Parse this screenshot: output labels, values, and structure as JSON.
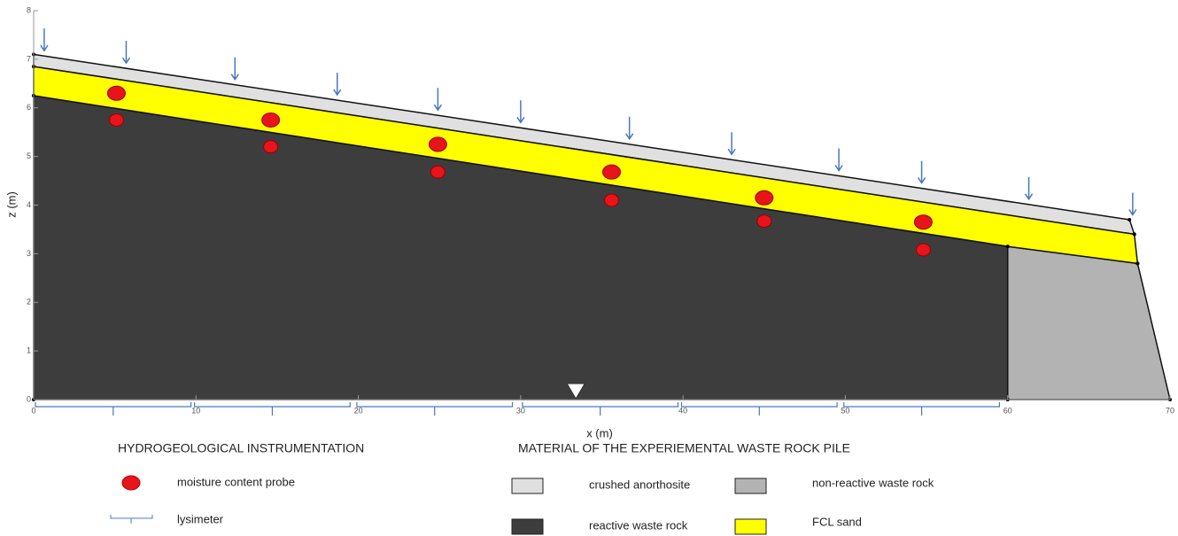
{
  "figure": {
    "x_label": "x (m)",
    "y_label": "z (m)",
    "xlim": [
      0,
      70
    ],
    "ylim": [
      0,
      8
    ],
    "xticks": [
      0,
      10,
      20,
      30,
      40,
      50,
      60,
      70
    ],
    "yticks": [
      0,
      1,
      2,
      3,
      4,
      5,
      6,
      7,
      8
    ],
    "layers": [
      {
        "name": "crushed anorthosite",
        "color": "#e0e0e0",
        "points": [
          [
            0,
            7.1
          ],
          [
            67.5,
            3.7
          ],
          [
            67.8,
            3.4
          ],
          [
            0,
            6.85
          ]
        ]
      },
      {
        "name": "non-reactive waste rock",
        "color": "#b3b3b3",
        "points": [
          [
            60,
            3.15
          ],
          [
            68,
            2.8
          ],
          [
            70,
            0
          ],
          [
            60,
            0
          ]
        ]
      },
      {
        "name": "reactive waste rock",
        "color": "#3d3d3d",
        "points": [
          [
            0,
            6.25
          ],
          [
            60,
            3.15
          ],
          [
            60,
            0
          ],
          [
            0,
            0
          ]
        ]
      },
      {
        "name": "FCL sand",
        "color": "#ffff00",
        "points": [
          [
            0,
            6.85
          ],
          [
            67.8,
            3.4
          ],
          [
            68,
            2.8
          ],
          [
            60,
            3.15
          ],
          [
            0,
            6.25
          ]
        ]
      }
    ],
    "probes": {
      "color": "#e8141b",
      "x": [
        5.1,
        5.1,
        14.6,
        14.6,
        24.9,
        24.9,
        35.6,
        35.6,
        45,
        45,
        54.8,
        54.8
      ],
      "z": [
        6.3,
        5.75,
        5.75,
        5.2,
        5.25,
        4.68,
        4.68,
        4.1,
        4.15,
        3.67,
        3.65,
        3.08
      ]
    },
    "infiltration_x": [
      0.65,
      5.7,
      12.4,
      18.7,
      24.9,
      30,
      36.7,
      43,
      49.6,
      54.7,
      61.3,
      67.7
    ],
    "lysimeter_x": [
      4.9,
      14.7,
      24.7,
      34.9,
      44.7,
      54.7
    ],
    "water_table_x": 33.4,
    "instrumentation_title": "HYDROGEOLOGICAL INSTRUMENTATION",
    "material_title": "MATERIAL OF THE EXPERIEMENTAL WASTE ROCK PILE",
    "probe_label": "moisture content probe",
    "lysimeter_label": "lysimeter"
  }
}
